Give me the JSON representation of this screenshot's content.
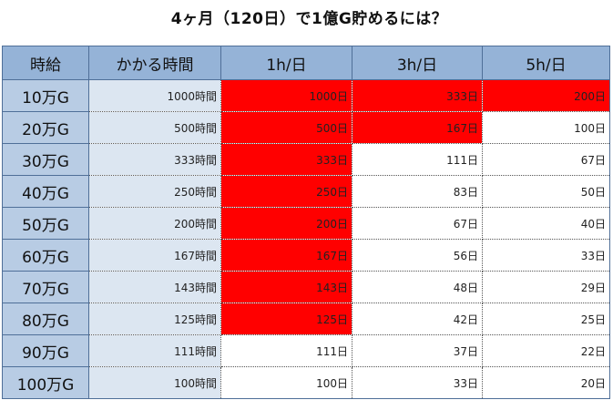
{
  "title": "4ヶ月（120日）で1億G貯めるには？",
  "colors": {
    "header_bg": "#95b3d7",
    "row_header_bg": "#b8cce4",
    "hours_bg": "#dce6f1",
    "highlight_red": "#ff0000"
  },
  "headers": [
    "時給",
    "かかる時間",
    "1h/日",
    "3h/日",
    "5h/日"
  ],
  "rows": [
    {
      "wage": "10万G",
      "hours": "1000時間",
      "d1": "1000日",
      "d3": "333日",
      "d5": "200日",
      "red": [
        true,
        true,
        true
      ]
    },
    {
      "wage": "20万G",
      "hours": "500時間",
      "d1": "500日",
      "d3": "167日",
      "d5": "100日",
      "red": [
        true,
        true,
        false
      ]
    },
    {
      "wage": "30万G",
      "hours": "333時間",
      "d1": "333日",
      "d3": "111日",
      "d5": "67日",
      "red": [
        true,
        false,
        false
      ]
    },
    {
      "wage": "40万G",
      "hours": "250時間",
      "d1": "250日",
      "d3": "83日",
      "d5": "50日",
      "red": [
        true,
        false,
        false
      ]
    },
    {
      "wage": "50万G",
      "hours": "200時間",
      "d1": "200日",
      "d3": "67日",
      "d5": "40日",
      "red": [
        true,
        false,
        false
      ]
    },
    {
      "wage": "60万G",
      "hours": "167時間",
      "d1": "167日",
      "d3": "56日",
      "d5": "33日",
      "red": [
        true,
        false,
        false
      ]
    },
    {
      "wage": "70万G",
      "hours": "143時間",
      "d1": "143日",
      "d3": "48日",
      "d5": "29日",
      "red": [
        true,
        false,
        false
      ]
    },
    {
      "wage": "80万G",
      "hours": "125時間",
      "d1": "125日",
      "d3": "42日",
      "d5": "25日",
      "red": [
        true,
        false,
        false
      ]
    },
    {
      "wage": "90万G",
      "hours": "111時間",
      "d1": "111日",
      "d3": "37日",
      "d5": "22日",
      "red": [
        false,
        false,
        false
      ]
    },
    {
      "wage": "100万G",
      "hours": "100時間",
      "d1": "100日",
      "d3": "33日",
      "d5": "20日",
      "red": [
        false,
        false,
        false
      ]
    }
  ]
}
